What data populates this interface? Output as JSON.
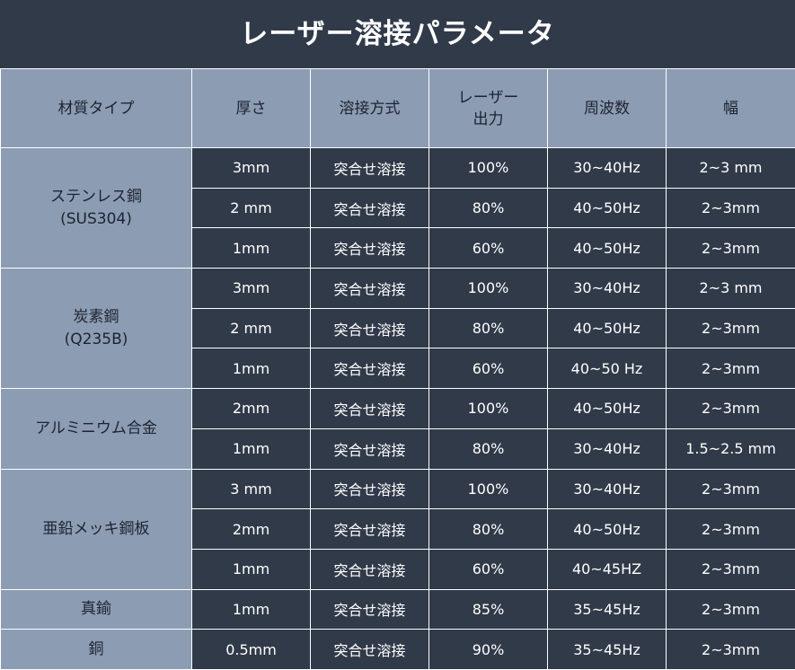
{
  "title": "レーザー溶接パラメータ",
  "headers": [
    "材質タイプ",
    "厚さ",
    "溶接方式",
    "レーザー\n出力",
    "周波数",
    "幅"
  ],
  "groups": [
    {
      "material": [
        "ステンレス鋼",
        "(SUS304)"
      ],
      "rows": [
        [
          "3mm",
          "突合せ溶接",
          "100%",
          "30~40Hz",
          "2~3 mm"
        ],
        [
          "2 mm",
          "突合せ溶接",
          "80%",
          "40~50Hz",
          "2~3mm"
        ],
        [
          "1mm",
          "突合せ溶接",
          "60%",
          "40~50Hz",
          "2~3mm"
        ]
      ]
    },
    {
      "material": [
        "炭素鋼",
        "(Q235B)"
      ],
      "rows": [
        [
          "3mm",
          "突合せ溶接",
          "100%",
          "30~40Hz",
          "2~3 mm"
        ],
        [
          "2 mm",
          "突合せ溶接",
          "80%",
          "40~50Hz",
          "2~3mm"
        ],
        [
          "1mm",
          "突合せ溶接",
          "60%",
          "40~50 Hz",
          "2~3mm"
        ]
      ]
    },
    {
      "material": [
        "アルミニウム合金"
      ],
      "rows": [
        [
          "2mm",
          "突合せ溶接",
          "100%",
          "40~50Hz",
          "2~3mm"
        ],
        [
          "1mm",
          "突合せ溶接",
          "80%",
          "30~40Hz",
          "1.5~2.5 mm"
        ]
      ]
    },
    {
      "material": [
        "亜鉛メッキ鋼板"
      ],
      "rows": [
        [
          "3 mm",
          "突合せ溶接",
          "100%",
          "30~40Hz",
          "2~3mm"
        ],
        [
          "2mm",
          "突合せ溶接",
          "80%",
          "40~50Hz",
          "2~3mm"
        ],
        [
          "1mm",
          "突合せ溶接",
          "60%",
          "40~45HZ",
          "2~3mm"
        ]
      ]
    },
    {
      "material": [
        "真鍮"
      ],
      "rows": [
        [
          "1mm",
          "突合せ溶接",
          "85%",
          "35~45Hz",
          "2~3mm"
        ]
      ]
    },
    {
      "material": [
        "銅"
      ],
      "rows": [
        [
          "0.5mm",
          "突合せ溶接",
          "90%",
          "35~45Hz",
          "2~3mm"
        ]
      ]
    }
  ]
}
